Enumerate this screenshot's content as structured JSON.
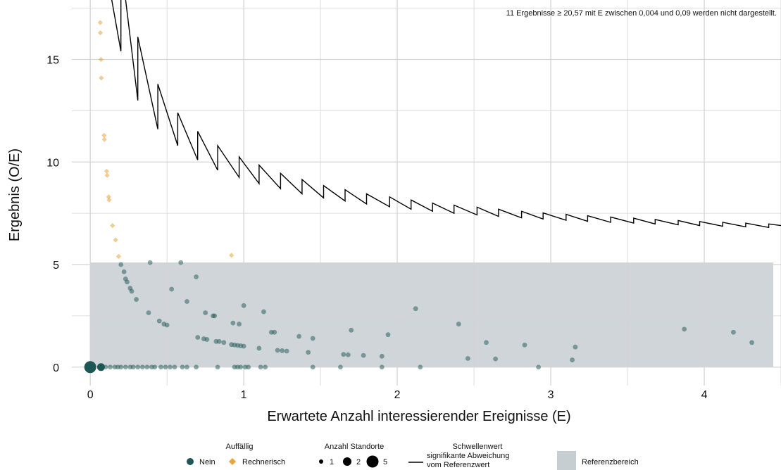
{
  "chart_data": {
    "type": "scatter",
    "note": "11 Ergebnisse ≥ 20,57 mit E zwischen 0,004 und 0,09 werden nicht dargestellt.",
    "xlabel": "Erwartete Anzahl interessierender Ereignisse (E)",
    "ylabel": "Ergebnis (O/E)",
    "xlim": [
      -0.12,
      4.5
    ],
    "ylim": [
      -0.9,
      17.9
    ],
    "xticks": [
      0,
      1,
      2,
      3,
      4
    ],
    "xtick_labels": [
      "0",
      "1",
      "2",
      "3",
      "4"
    ],
    "yticks": [
      0,
      5,
      10,
      15
    ],
    "ytick_labels": [
      "0",
      "5",
      "10",
      "15"
    ],
    "grid": true,
    "colors": {
      "nein": "#1d5653",
      "rechnerisch": "#e8a33a",
      "reference_band": "#c7ced2",
      "threshold": "#000000",
      "grid": "#d4d4d4"
    },
    "reference_range": [
      0,
      5.1
    ],
    "threshold_points": [
      [
        0.06,
        17.9
      ],
      [
        0.09,
        20.0
      ],
      [
        0.2,
        15.4
      ],
      [
        0.2,
        19.8
      ],
      [
        0.31,
        13.0
      ],
      [
        0.31,
        16.1
      ],
      [
        0.44,
        11.6
      ],
      [
        0.44,
        13.8
      ],
      [
        0.57,
        10.8
      ],
      [
        0.57,
        12.4
      ],
      [
        0.7,
        10.1
      ],
      [
        0.7,
        11.5
      ],
      [
        0.83,
        9.6
      ],
      [
        0.83,
        10.8
      ],
      [
        0.97,
        9.25
      ],
      [
        0.97,
        10.25
      ],
      [
        1.1,
        8.95
      ],
      [
        1.1,
        9.85
      ],
      [
        1.24,
        8.7
      ],
      [
        1.24,
        9.45
      ],
      [
        1.38,
        8.45
      ],
      [
        1.38,
        9.15
      ],
      [
        1.52,
        8.25
      ],
      [
        1.52,
        8.85
      ],
      [
        1.66,
        8.1
      ],
      [
        1.66,
        8.65
      ],
      [
        1.8,
        7.95
      ],
      [
        1.8,
        8.45
      ],
      [
        1.95,
        7.82
      ],
      [
        1.95,
        8.3
      ],
      [
        2.09,
        7.7
      ],
      [
        2.09,
        8.15
      ],
      [
        2.23,
        7.6
      ],
      [
        2.23,
        8.0
      ],
      [
        2.37,
        7.5
      ],
      [
        2.37,
        7.9
      ],
      [
        2.52,
        7.42
      ],
      [
        2.52,
        7.8
      ],
      [
        2.66,
        7.35
      ],
      [
        2.66,
        7.7
      ],
      [
        2.81,
        7.28
      ],
      [
        2.81,
        7.6
      ],
      [
        2.95,
        7.22
      ],
      [
        2.95,
        7.52
      ],
      [
        3.1,
        7.16
      ],
      [
        3.1,
        7.45
      ],
      [
        3.24,
        7.11
      ],
      [
        3.24,
        7.38
      ],
      [
        3.39,
        7.06
      ],
      [
        3.39,
        7.32
      ],
      [
        3.54,
        7.02
      ],
      [
        3.54,
        7.26
      ],
      [
        3.68,
        6.98
      ],
      [
        3.68,
        7.2
      ],
      [
        3.83,
        6.94
      ],
      [
        3.83,
        7.15
      ],
      [
        3.97,
        6.9
      ],
      [
        3.97,
        7.1
      ],
      [
        4.12,
        6.87
      ],
      [
        4.12,
        7.06
      ],
      [
        4.27,
        6.84
      ],
      [
        4.27,
        7.02
      ],
      [
        4.42,
        6.81
      ],
      [
        4.42,
        6.98
      ],
      [
        4.5,
        6.9
      ]
    ],
    "series": [
      {
        "name": "Nein",
        "points": [
          [
            0.0,
            0.0,
            5
          ],
          [
            0.07,
            0.0,
            2
          ],
          [
            0.1,
            0.0,
            1
          ],
          [
            0.13,
            0.0,
            1
          ],
          [
            0.16,
            0.0,
            1
          ],
          [
            0.18,
            0.0,
            1
          ],
          [
            0.2,
            0.0,
            1
          ],
          [
            0.23,
            0.0,
            1
          ],
          [
            0.26,
            0.0,
            1
          ],
          [
            0.28,
            0.0,
            1
          ],
          [
            0.31,
            0.0,
            1
          ],
          [
            0.34,
            0.0,
            1
          ],
          [
            0.37,
            0.0,
            1
          ],
          [
            0.4,
            0.0,
            1
          ],
          [
            0.42,
            0.0,
            1
          ],
          [
            0.46,
            0.0,
            1
          ],
          [
            0.49,
            0.0,
            1
          ],
          [
            0.52,
            0.0,
            1
          ],
          [
            0.55,
            0.0,
            1
          ],
          [
            0.6,
            0.0,
            1
          ],
          [
            0.63,
            0.0,
            1
          ],
          [
            0.69,
            0.0,
            1
          ],
          [
            0.83,
            0.0,
            1
          ],
          [
            0.94,
            0.0,
            1
          ],
          [
            0.96,
            0.0,
            1
          ],
          [
            0.98,
            0.0,
            1
          ],
          [
            1.01,
            0.0,
            1
          ],
          [
            1.03,
            0.0,
            1
          ],
          [
            1.11,
            0.0,
            1
          ],
          [
            1.14,
            0.0,
            1
          ],
          [
            1.45,
            0.0,
            1
          ],
          [
            1.63,
            0.0,
            1
          ],
          [
            1.9,
            0.0,
            1
          ],
          [
            2.15,
            0.0,
            1
          ],
          [
            2.92,
            0.0,
            1
          ],
          [
            0.2,
            5.0,
            1
          ],
          [
            0.22,
            4.65,
            1
          ],
          [
            0.23,
            4.3,
            1
          ],
          [
            0.24,
            4.15,
            1
          ],
          [
            0.26,
            3.85,
            1
          ],
          [
            0.27,
            3.7,
            1
          ],
          [
            0.3,
            3.3,
            1
          ],
          [
            0.38,
            2.65,
            1
          ],
          [
            0.45,
            2.25,
            1
          ],
          [
            0.48,
            2.1,
            1
          ],
          [
            0.5,
            2.05,
            1
          ],
          [
            0.39,
            5.1,
            1
          ],
          [
            0.53,
            3.8,
            1
          ],
          [
            0.59,
            5.1,
            1
          ],
          [
            0.63,
            3.2,
            1
          ],
          [
            0.69,
            4.4,
            1
          ],
          [
            0.7,
            1.45,
            1
          ],
          [
            0.74,
            1.38,
            1
          ],
          [
            0.76,
            1.35,
            1
          ],
          [
            0.75,
            2.65,
            1
          ],
          [
            0.8,
            2.5,
            1
          ],
          [
            0.81,
            2.5,
            1
          ],
          [
            0.82,
            1.25,
            1
          ],
          [
            0.84,
            1.25,
            1
          ],
          [
            0.87,
            1.2,
            1
          ],
          [
            0.92,
            1.1,
            1
          ],
          [
            0.94,
            1.08,
            1
          ],
          [
            0.96,
            1.06,
            1
          ],
          [
            0.98,
            1.04,
            1
          ],
          [
            1.0,
            1.02,
            1
          ],
          [
            0.93,
            2.15,
            1
          ],
          [
            0.97,
            2.1,
            1
          ],
          [
            1.0,
            3.0,
            1
          ],
          [
            1.1,
            0.92,
            1
          ],
          [
            1.13,
            2.7,
            1
          ],
          [
            1.18,
            1.7,
            1
          ],
          [
            1.2,
            1.7,
            1
          ],
          [
            1.22,
            0.82,
            1
          ],
          [
            1.25,
            0.8,
            1
          ],
          [
            1.28,
            0.78,
            1
          ],
          [
            1.36,
            1.5,
            1
          ],
          [
            1.42,
            0.72,
            1
          ],
          [
            1.45,
            1.4,
            1
          ],
          [
            1.65,
            0.62,
            1
          ],
          [
            1.68,
            0.6,
            1
          ],
          [
            1.7,
            1.8,
            1
          ],
          [
            1.78,
            0.57,
            1
          ],
          [
            1.9,
            0.53,
            1
          ],
          [
            1.94,
            1.58,
            1
          ],
          [
            2.12,
            2.85,
            1
          ],
          [
            2.4,
            2.1,
            1
          ],
          [
            2.46,
            0.42,
            1
          ],
          [
            2.58,
            1.2,
            1
          ],
          [
            2.64,
            0.4,
            1
          ],
          [
            2.83,
            1.08,
            1
          ],
          [
            3.14,
            0.35,
            1
          ],
          [
            3.16,
            0.98,
            1
          ],
          [
            3.87,
            1.85,
            1
          ],
          [
            4.19,
            1.7,
            1
          ],
          [
            4.31,
            1.2,
            1
          ]
        ]
      },
      {
        "name": "Rechnerisch",
        "points": [
          [
            0.065,
            16.8
          ],
          [
            0.066,
            16.3
          ],
          [
            0.07,
            15.0
          ],
          [
            0.072,
            14.1
          ],
          [
            0.09,
            11.3
          ],
          [
            0.092,
            11.1
          ],
          [
            0.107,
            9.55
          ],
          [
            0.11,
            9.35
          ],
          [
            0.12,
            8.3
          ],
          [
            0.123,
            8.15
          ],
          [
            0.145,
            6.9
          ],
          [
            0.165,
            6.2
          ],
          [
            0.185,
            5.4
          ],
          [
            0.92,
            5.45
          ]
        ]
      }
    ]
  },
  "legend": {
    "auffaellig": {
      "title": "Auffällig",
      "items": [
        {
          "label": "Nein",
          "color": "#1d5653",
          "shape": "circle"
        },
        {
          "label": "Rechnerisch",
          "color": "#e8a33a",
          "shape": "diamond"
        }
      ]
    },
    "standorte": {
      "title": "Anzahl Standorte",
      "items": [
        {
          "label": "1",
          "size": 1
        },
        {
          "label": "2",
          "size": 2
        },
        {
          "label": "5",
          "size": 5
        }
      ]
    },
    "schwellenwert": {
      "title": "Schwellenwert",
      "lines": [
        "signifikante Abweichung",
        "vom Referenzwert"
      ]
    },
    "referenzbereich": {
      "label": "Referenzbereich"
    }
  }
}
